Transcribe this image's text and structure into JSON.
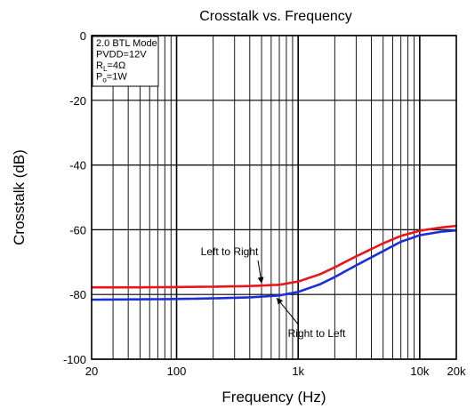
{
  "chart_data": {
    "type": "line",
    "title": "Crosstalk vs. Frequency",
    "xlabel": "Frequency (Hz)",
    "ylabel": "Crosstalk (dB)",
    "xscale": "log",
    "xlim": [
      20,
      20000
    ],
    "ylim": [
      -100,
      0
    ],
    "grid": true,
    "x_ticks": [
      {
        "value": 20,
        "label": "20"
      },
      {
        "value": 100,
        "label": "100"
      },
      {
        "value": 1000,
        "label": "1k"
      },
      {
        "value": 10000,
        "label": "10k"
      },
      {
        "value": 20000,
        "label": "20k"
      }
    ],
    "y_ticks": [
      {
        "value": 0,
        "label": "0"
      },
      {
        "value": -20,
        "label": "-20"
      },
      {
        "value": -40,
        "label": "-40"
      },
      {
        "value": -60,
        "label": "-60"
      },
      {
        "value": -80,
        "label": "-80"
      },
      {
        "value": -100,
        "label": "-100"
      }
    ],
    "conditions_box": [
      {
        "main": "2.0 BTL Mode",
        "sub": "",
        "rest": ""
      },
      {
        "main": "PVDD=12V",
        "sub": "",
        "rest": ""
      },
      {
        "main": "R",
        "sub": "L",
        "rest": "=4Ω"
      },
      {
        "main": "P",
        "sub": "o",
        "rest": "=1W"
      }
    ],
    "series": [
      {
        "name": "Left to Right",
        "color": "#e8161c",
        "x": [
          20,
          50,
          100,
          200,
          400,
          700,
          1000,
          1500,
          2000,
          3000,
          5000,
          7000,
          10000,
          15000,
          20000
        ],
        "y": [
          -77.8,
          -77.8,
          -77.7,
          -77.6,
          -77.4,
          -77.0,
          -76.0,
          -73.8,
          -71.6,
          -68.2,
          -64.2,
          -61.9,
          -60.3,
          -59.3,
          -58.8
        ]
      },
      {
        "name": "Right to Left",
        "color": "#1c2fd6",
        "x": [
          20,
          50,
          100,
          200,
          400,
          700,
          1000,
          1500,
          2000,
          3000,
          5000,
          7000,
          10000,
          15000,
          20000
        ],
        "y": [
          -81.6,
          -81.5,
          -81.4,
          -81.2,
          -80.9,
          -80.3,
          -79.2,
          -76.9,
          -74.6,
          -71.0,
          -66.6,
          -63.7,
          -61.7,
          -60.6,
          -60.2
        ]
      }
    ],
    "annotations": [
      {
        "text": "Left to Right",
        "series": 0,
        "x": 500
      },
      {
        "text": "Right to Left",
        "series": 1,
        "x": 670
      }
    ]
  }
}
